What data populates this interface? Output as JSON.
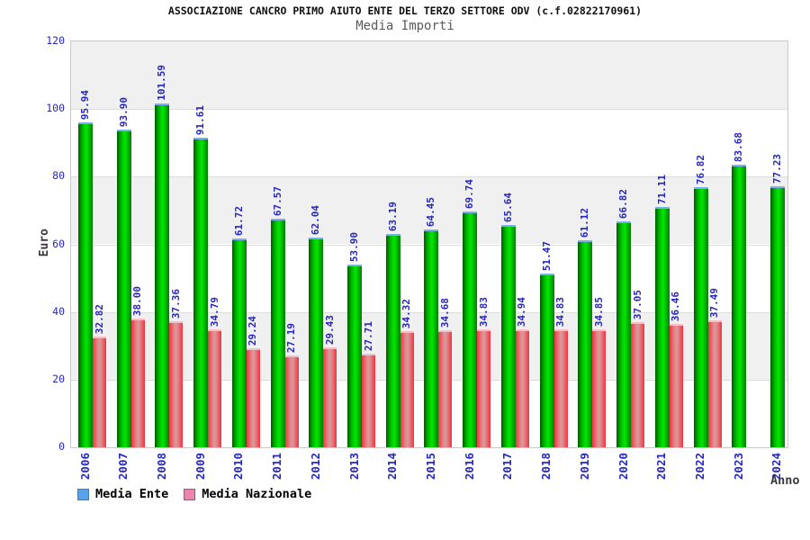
{
  "header": {
    "title": "ASSOCIAZIONE CANCRO PRIMO AIUTO ENTE DEL TERZO SETTORE ODV (c.f.02822170961)",
    "subtitle": "Media Importi"
  },
  "chart_data": {
    "type": "bar",
    "title": "ASSOCIAZIONE CANCRO PRIMO AIUTO ENTE DEL TERZO SETTORE ODV (c.f.02822170961)",
    "subtitle": "Media Importi",
    "xlabel": "Anno",
    "ylabel": "Euro",
    "ylim": [
      0,
      120
    ],
    "ytick_step": 20,
    "yticks": [
      0,
      20,
      40,
      60,
      80,
      100,
      120
    ],
    "grid": "alternating horizontal bands every 20 units, gray band at top",
    "legend_position": "bottom-left",
    "value_label_decimals": 2,
    "categories": [
      "2006",
      "2007",
      "2008",
      "2009",
      "2010",
      "2011",
      "2012",
      "2013",
      "2014",
      "2015",
      "2016",
      "2017",
      "2018",
      "2019",
      "2020",
      "2021",
      "2022",
      "2023",
      "2024"
    ],
    "series": [
      {
        "name": "Media Ente",
        "values": [
          95.94,
          93.9,
          101.59,
          91.61,
          61.72,
          67.57,
          62.04,
          53.9,
          63.19,
          64.45,
          69.74,
          65.64,
          51.47,
          61.12,
          66.82,
          71.11,
          76.82,
          83.68,
          77.23
        ]
      },
      {
        "name": "Media Nazionale",
        "values": [
          32.82,
          38.0,
          37.36,
          34.79,
          29.24,
          27.19,
          29.43,
          27.71,
          34.32,
          34.68,
          34.83,
          34.94,
          34.83,
          34.85,
          37.05,
          36.46,
          37.49,
          null,
          null
        ]
      }
    ],
    "colors": {
      "media_ente_bar": "#00e800",
      "media_ente_bar_edge": "#015d01",
      "media_ente_cap": "#7cabee",
      "media_nazionale_bar": "#f2323e",
      "media_nazionale_bar_center": "#d89c9c",
      "media_nazionale_cap": "#f2bdc6",
      "value_label": "#2626c0",
      "axis_label": "#3a3a3a",
      "band_gray": "#f0f0f0",
      "band_white": "#ffffff",
      "gridline": "#dcdcdc",
      "plot_border": "#c9c9c9"
    }
  },
  "legend": {
    "items": [
      {
        "label": "Media Ente",
        "swatch_fill": "#57a2e8",
        "swatch_border": "#4a7aaa"
      },
      {
        "label": "Media Nazionale",
        "swatch_fill": "#ec86ae",
        "swatch_border": "#8d5f70"
      }
    ]
  }
}
